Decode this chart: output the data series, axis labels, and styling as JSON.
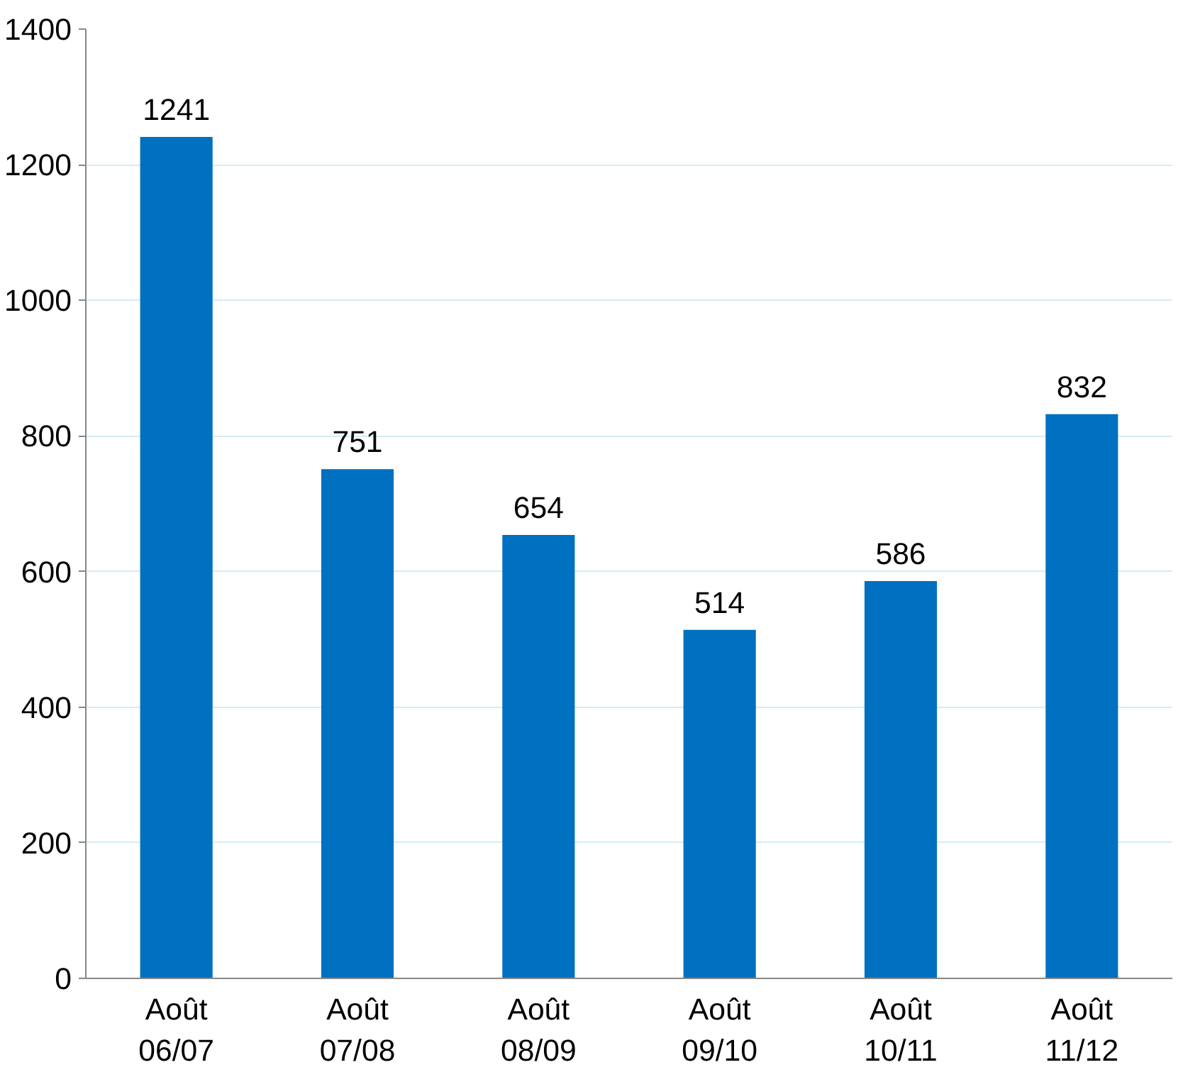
{
  "chart_data": {
    "type": "bar",
    "categories": [
      "Août\n06/07",
      "Août\n07/08",
      "Août\n08/09",
      "Août\n09/10",
      "Août\n10/11",
      "Août\n11/12"
    ],
    "values": [
      1241,
      751,
      654,
      514,
      586,
      832
    ],
    "color": "#0070c0",
    "ylim": [
      0,
      1400
    ],
    "yticks": [
      0,
      200,
      400,
      600,
      800,
      1000,
      1200,
      1400
    ],
    "grid": "y",
    "data_labels": true
  }
}
